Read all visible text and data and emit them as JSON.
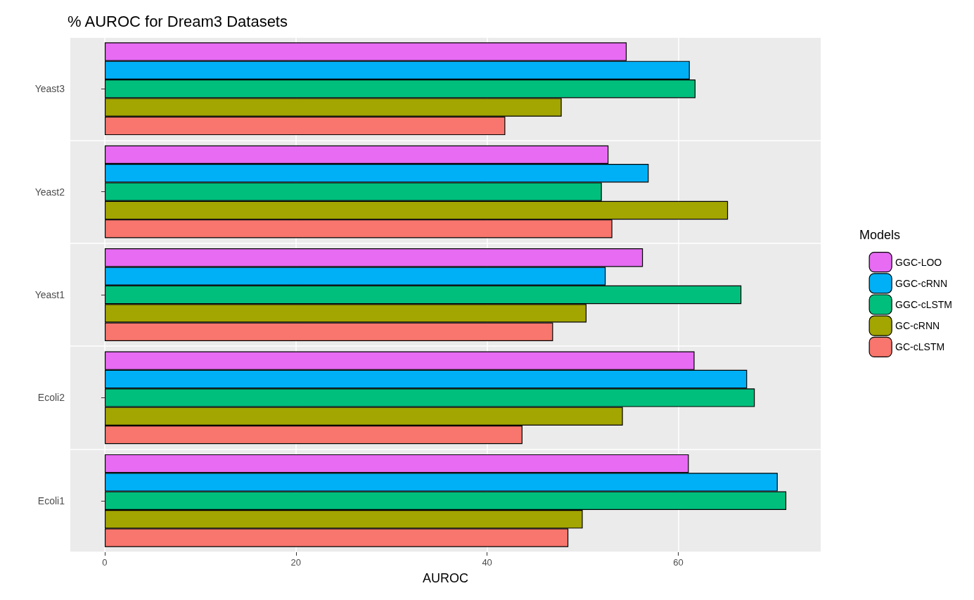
{
  "chart_data": {
    "type": "bar",
    "orientation": "horizontal",
    "title": "% AUROC for Dream3 Datasets",
    "xlabel": "AUROC",
    "legend_title": "Models",
    "legend": "right",
    "grid": true,
    "categories": [
      "Yeast3",
      "Yeast2",
      "Yeast1",
      "Ecoli2",
      "Ecoli1"
    ],
    "xlim": [
      -3.6,
      74.9
    ],
    "xticks": [
      0,
      20,
      40,
      60
    ],
    "series": [
      {
        "name": "GGC-LOO",
        "color": "#e76bf3",
        "values": [
          54.6,
          52.7,
          56.3,
          61.7,
          61.1
        ]
      },
      {
        "name": "GGC-cRNN",
        "color": "#00b0f6",
        "values": [
          61.2,
          56.9,
          52.4,
          67.2,
          70.4
        ]
      },
      {
        "name": "GGC-cLSTM",
        "color": "#00bf7d",
        "values": [
          61.8,
          52.0,
          66.6,
          68.0,
          71.3
        ]
      },
      {
        "name": "GC-cRNN",
        "color": "#a3a500",
        "values": [
          47.8,
          65.2,
          50.4,
          54.2,
          50.0
        ]
      },
      {
        "name": "GC-cLSTM",
        "color": "#f8766d",
        "values": [
          41.9,
          53.1,
          46.9,
          43.7,
          48.5
        ]
      }
    ]
  }
}
